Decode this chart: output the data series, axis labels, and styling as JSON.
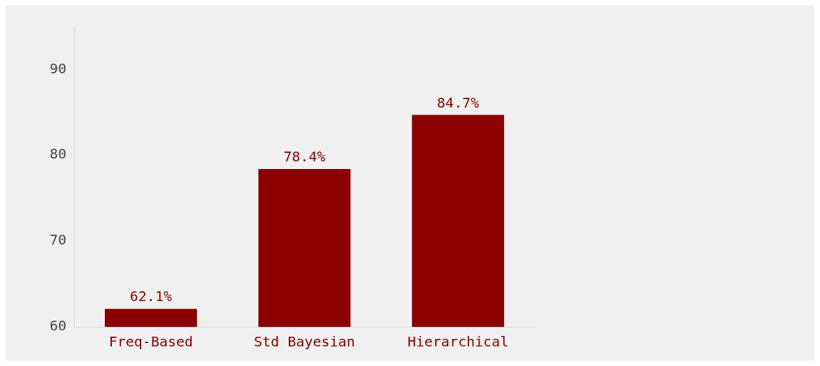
{
  "chart_data": {
    "type": "bar",
    "categories": [
      "Freq-Based",
      "Std Bayesian",
      "Hierarchical"
    ],
    "values": [
      62.1,
      78.4,
      84.7
    ],
    "color": "#8b0000",
    "ylim": [
      60,
      95
    ],
    "yticks": [
      60,
      70,
      80,
      90
    ],
    "value_labels": [
      "62.1%",
      "78.4%",
      "84.7%"
    ],
    "grid": false,
    "legend": false
  }
}
